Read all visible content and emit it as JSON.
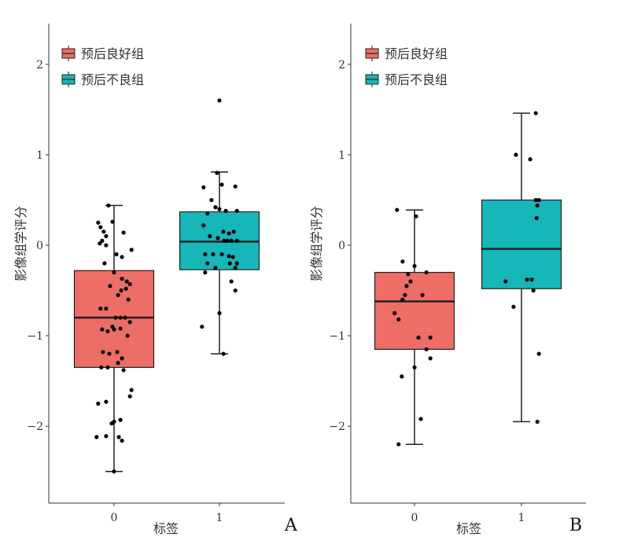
{
  "chart_data": [
    {
      "type": "box",
      "panel_label": "A",
      "xlabel": "标签",
      "ylabel": "影像组学评分",
      "ylim": [
        -2.85,
        2.45
      ],
      "yticks": [
        -2,
        -1,
        0,
        1,
        2
      ],
      "ytick_labels": [
        "−2",
        "−1",
        "0",
        "1",
        "2"
      ],
      "categories": [
        "0",
        "1"
      ],
      "legend": [
        {
          "label": "预后良好组",
          "color": "#ec6e67"
        },
        {
          "label": "预后不良组",
          "color": "#16b6b9"
        }
      ],
      "legend_position": "top-left",
      "boxes": [
        {
          "category": "0",
          "name": "预后良好组",
          "color": "#ec6e67",
          "whisker_low": -2.5,
          "q1": -1.35,
          "median": -0.8,
          "q3": -0.28,
          "whisker_high": 0.44
        },
        {
          "category": "1",
          "name": "预后不良组",
          "color": "#16b6b9",
          "whisker_low": -1.2,
          "q1": -0.27,
          "median": 0.04,
          "q3": 0.37,
          "whisker_high": 0.81
        }
      ],
      "points": [
        {
          "category": "0",
          "jitter": [
            -0.2,
            -0.17,
            -0.13,
            -0.15,
            -0.1,
            -0.07,
            -0.1,
            -0.18,
            -0.02,
            0.03,
            0.1,
            0.12,
            -0.12,
            0.0,
            0.1,
            0.16,
            0.2,
            0.22,
            -0.05,
            0.05,
            0.09,
            0.15,
            0.18,
            -0.17,
            -0.1,
            0.02,
            0.08,
            0.14,
            0.2,
            -0.15,
            -0.08,
            -0.02,
            0.0,
            0.08,
            0.17,
            -0.14,
            -0.06,
            0.04,
            0.1,
            -0.16,
            -0.08,
            0.05,
            0.12,
            0.22,
            0.2,
            -0.2,
            -0.1,
            0.0,
            0.08,
            -0.03,
            0.06,
            0.1,
            -0.1,
            0.0,
            -0.22
          ],
          "values": [
            0.25,
            0.2,
            0.15,
            0.05,
            0.1,
            0.44,
            0.0,
            0.02,
            0.26,
            -0.1,
            -0.13,
            0.14,
            -0.2,
            -0.3,
            -0.37,
            -0.4,
            -0.43,
            -0.05,
            -0.45,
            -0.55,
            -0.5,
            -0.48,
            -0.6,
            -0.7,
            -0.7,
            -0.8,
            -0.8,
            -0.8,
            -0.85,
            -0.93,
            -0.95,
            -0.9,
            -0.93,
            -0.92,
            -1.0,
            -1.18,
            -1.2,
            -1.18,
            -1.25,
            -1.35,
            -1.35,
            -1.3,
            -1.38,
            -1.6,
            -1.67,
            -1.75,
            -1.73,
            -1.95,
            -1.93,
            -1.97,
            -2.12,
            -2.16,
            -2.11,
            -2.5,
            -2.12
          ]
        },
        {
          "category": "1",
          "jitter": [
            0.0,
            -0.03,
            0.03,
            -0.2,
            -0.1,
            0.0,
            0.08,
            0.2,
            -0.15,
            -0.05,
            0.05,
            0.12,
            0.18,
            0.22,
            -0.2,
            -0.12,
            -0.02,
            0.06,
            0.1,
            0.15,
            0.22,
            -0.18,
            -0.08,
            0.03,
            0.12,
            0.17,
            0.22,
            -0.15,
            -0.05,
            0.13,
            0.2,
            -0.18,
            0.15,
            0.2,
            -0.22,
            0.0,
            0.05
          ],
          "values": [
            1.6,
            0.8,
            0.67,
            0.64,
            0.5,
            0.4,
            0.38,
            0.65,
            0.35,
            0.42,
            0.15,
            0.13,
            0.15,
            0.38,
            0.22,
            0.1,
            0.08,
            0.05,
            0.05,
            0.05,
            0.05,
            -0.1,
            -0.1,
            -0.1,
            -0.12,
            -0.13,
            -0.2,
            -0.2,
            -0.25,
            -0.2,
            -0.25,
            -0.3,
            -0.4,
            -0.5,
            -0.9,
            -0.75,
            -1.2
          ]
        }
      ]
    },
    {
      "type": "box",
      "panel_label": "B",
      "xlabel": "标签",
      "ylabel": "影像组学评分",
      "ylim": [
        -2.85,
        2.45
      ],
      "yticks": [
        -2,
        -1,
        0,
        1,
        2
      ],
      "ytick_labels": [
        "−2",
        "−1",
        "0",
        "1",
        "2"
      ],
      "categories": [
        "0",
        "1"
      ],
      "legend": [
        {
          "label": "预后良好组",
          "color": "#ec6e67"
        },
        {
          "label": "预后不良组",
          "color": "#16b6b9"
        }
      ],
      "legend_position": "top-left",
      "boxes": [
        {
          "category": "0",
          "name": "预后良好组",
          "color": "#ec6e67",
          "whisker_low": -2.2,
          "q1": -1.15,
          "median": -0.62,
          "q3": -0.3,
          "whisker_high": 0.39
        },
        {
          "category": "1",
          "name": "预后不良组",
          "color": "#16b6b9",
          "whisker_low": -1.95,
          "q1": -0.48,
          "median": -0.04,
          "q3": 0.5,
          "whisker_high": 1.46
        }
      ],
      "points": [
        {
          "category": "0",
          "jitter": [
            -0.22,
            0.02,
            -0.15,
            0.0,
            -0.08,
            -0.05,
            0.15,
            -0.1,
            -0.12,
            -0.15,
            0.1,
            -0.25,
            -0.2,
            0.05,
            0.2,
            0.0,
            0.15,
            0.2,
            -0.16,
            0.08,
            -0.2
          ],
          "values": [
            0.39,
            0.32,
            -0.18,
            -0.23,
            -0.32,
            -0.4,
            -0.3,
            -0.45,
            -0.55,
            -0.6,
            -0.55,
            -0.75,
            -0.82,
            -1.02,
            -1.02,
            -1.35,
            -1.15,
            -1.25,
            -1.45,
            -1.92,
            -2.2
          ]
        },
        {
          "category": "1",
          "jitter": [
            0.18,
            -0.07,
            0.11,
            0.18,
            0.22,
            0.2,
            0.19,
            -0.2,
            0.07,
            0.13,
            0.15,
            -0.1,
            0.22,
            0.2
          ],
          "values": [
            1.46,
            1.0,
            0.95,
            0.5,
            0.5,
            0.44,
            0.3,
            -0.4,
            -0.38,
            -0.38,
            -0.5,
            -0.68,
            -1.2,
            -1.95
          ]
        }
      ]
    }
  ]
}
